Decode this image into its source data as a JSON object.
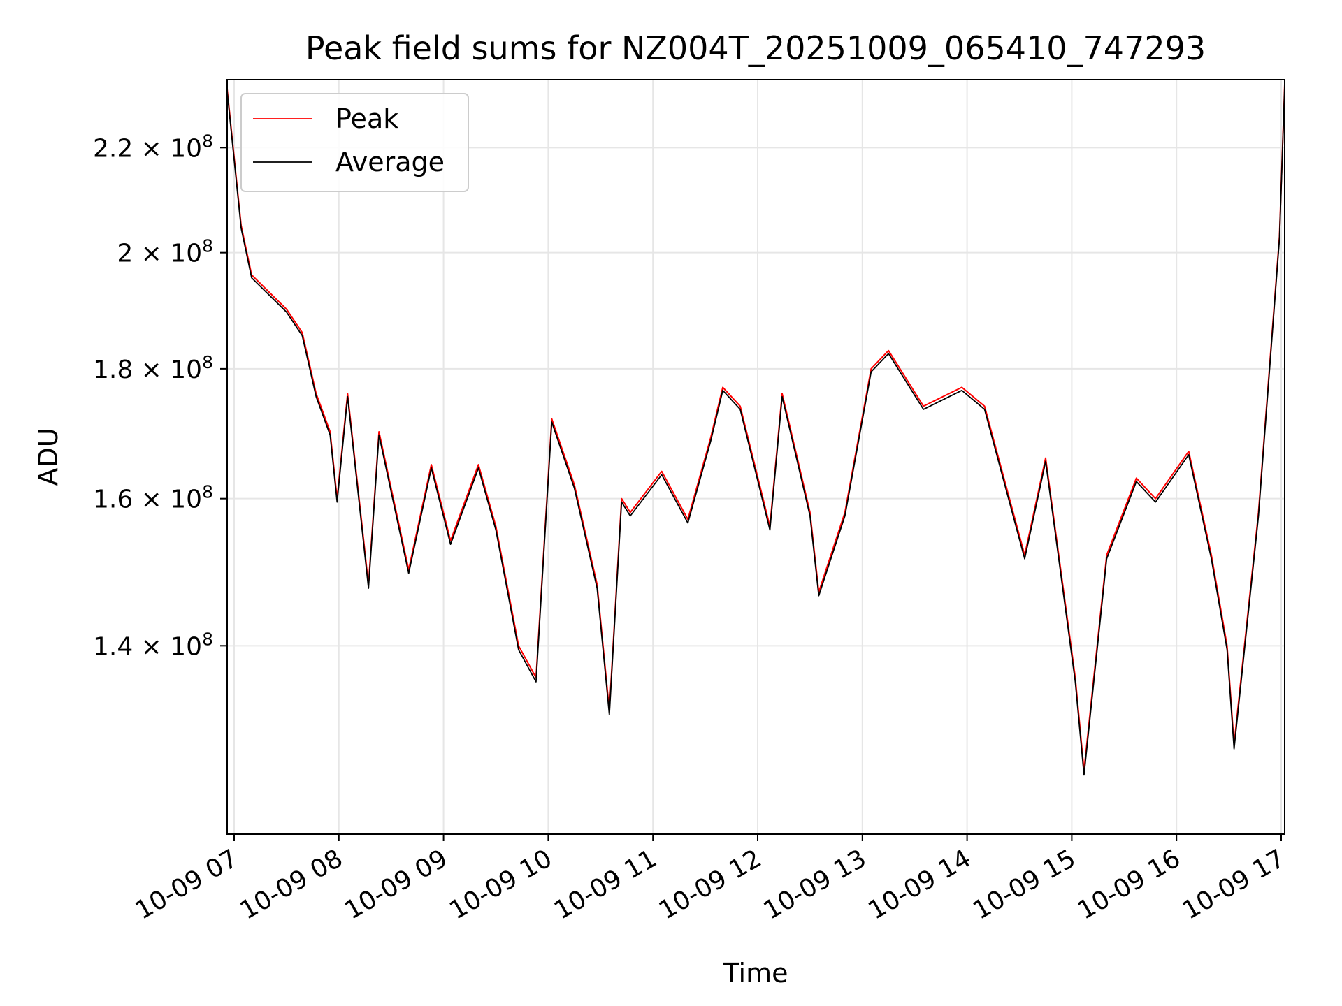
{
  "chart_data": {
    "type": "line",
    "title": "Peak field sums for NZ004T_20251009_065410_747293",
    "xlabel": "Time",
    "ylabel": "ADU",
    "y_scale": "log",
    "grid": true,
    "legend_position": "top-left",
    "xlim": [
      "2025-10-09 06:56",
      "2025-10-09 17:02"
    ],
    "ylim": [
      118000000,
      234000000
    ],
    "x_ticks": [
      "10-09 07",
      "10-09 08",
      "10-09 09",
      "10-09 10",
      "10-09 11",
      "10-09 12",
      "10-09 13",
      "10-09 14",
      "10-09 15",
      "10-09 16",
      "10-09 17"
    ],
    "x_tick_times": [
      "2025-10-09 07:00",
      "2025-10-09 08:00",
      "2025-10-09 09:00",
      "2025-10-09 10:00",
      "2025-10-09 11:00",
      "2025-10-09 12:00",
      "2025-10-09 13:00",
      "2025-10-09 14:00",
      "2025-10-09 15:00",
      "2025-10-09 16:00",
      "2025-10-09 17:00"
    ],
    "y_ticks": [
      {
        "value": 140000000,
        "mantissa": "1.4",
        "exponent": "8"
      },
      {
        "value": 160000000,
        "mantissa": "1.6",
        "exponent": "8"
      },
      {
        "value": 180000000,
        "mantissa": "1.8",
        "exponent": "8"
      },
      {
        "value": 200000000,
        "mantissa": "2",
        "exponent": "8"
      },
      {
        "value": 220000000,
        "mantissa": "2.2",
        "exponent": "8"
      }
    ],
    "times_shown": [
      "2025-10-09 06:56",
      "2025-10-09 07:04",
      "2025-10-09 07:10",
      "2025-10-09 07:30",
      "2025-10-09 07:39",
      "2025-10-09 07:47",
      "2025-10-09 07:55",
      "2025-10-09 07:59",
      "2025-10-09 08:05",
      "2025-10-09 08:17",
      "2025-10-09 08:23",
      "2025-10-09 08:40",
      "2025-10-09 08:53",
      "2025-10-09 09:04",
      "2025-10-09 09:20",
      "2025-10-09 09:30",
      "2025-10-09 09:43",
      "2025-10-09 09:53",
      "2025-10-09 10:02",
      "2025-10-09 10:15",
      "2025-10-09 10:28",
      "2025-10-09 10:35",
      "2025-10-09 10:42",
      "2025-10-09 10:47",
      "2025-10-09 11:05",
      "2025-10-09 11:20",
      "2025-10-09 11:33",
      "2025-10-09 11:40",
      "2025-10-09 11:50",
      "2025-10-09 12:07",
      "2025-10-09 12:14",
      "2025-10-09 12:30",
      "2025-10-09 12:35",
      "2025-10-09 12:50",
      "2025-10-09 13:05",
      "2025-10-09 13:15",
      "2025-10-09 13:35",
      "2025-10-09 13:57",
      "2025-10-09 14:10",
      "2025-10-09 14:33",
      "2025-10-09 14:45",
      "2025-10-09 15:02",
      "2025-10-09 15:07",
      "2025-10-09 15:20",
      "2025-10-09 15:37",
      "2025-10-09 15:48",
      "2025-10-09 16:07",
      "2025-10-09 16:20",
      "2025-10-09 16:29",
      "2025-10-09 16:33",
      "2025-10-09 16:47",
      "2025-10-09 16:59",
      "2025-10-09 17:02"
    ],
    "series": [
      {
        "name": "Peak",
        "color": "#ff0000",
        "values": [
          232000000,
          205000000,
          196000000,
          190000000,
          186000000,
          176000000,
          170000000,
          160000000,
          176000000,
          148000000,
          170000000,
          150000000,
          165000000,
          154000000,
          165000000,
          156000000,
          140000000,
          136000000,
          172000000,
          162000000,
          148000000,
          132000000,
          160000000,
          158000000,
          164000000,
          157000000,
          169000000,
          177000000,
          174000000,
          156000000,
          176000000,
          158000000,
          147000000,
          158000000,
          180000000,
          183000000,
          174000000,
          177000000,
          174000000,
          152000000,
          166000000,
          136000000,
          125000000,
          152000000,
          163000000,
          160000000,
          167000000,
          152000000,
          140000000,
          128000000,
          158000000,
          203000000,
          233000000
        ]
      },
      {
        "name": "Average",
        "color": "#000000",
        "values": [
          231500000,
          204500000,
          195500000,
          189500000,
          185500000,
          175500000,
          169500000,
          159500000,
          175500000,
          147500000,
          169500000,
          149500000,
          164500000,
          153500000,
          164500000,
          155500000,
          139500000,
          135500000,
          171500000,
          161500000,
          147500000,
          131500000,
          159500000,
          157500000,
          163500000,
          156500000,
          168500000,
          176500000,
          173500000,
          155500000,
          175500000,
          157500000,
          146500000,
          157500000,
          179500000,
          182500000,
          173500000,
          176500000,
          173500000,
          151500000,
          165500000,
          135500000,
          124500000,
          151500000,
          162500000,
          159500000,
          166500000,
          151500000,
          139500000,
          127500000,
          157500000,
          202500000,
          232500000
        ]
      }
    ]
  }
}
